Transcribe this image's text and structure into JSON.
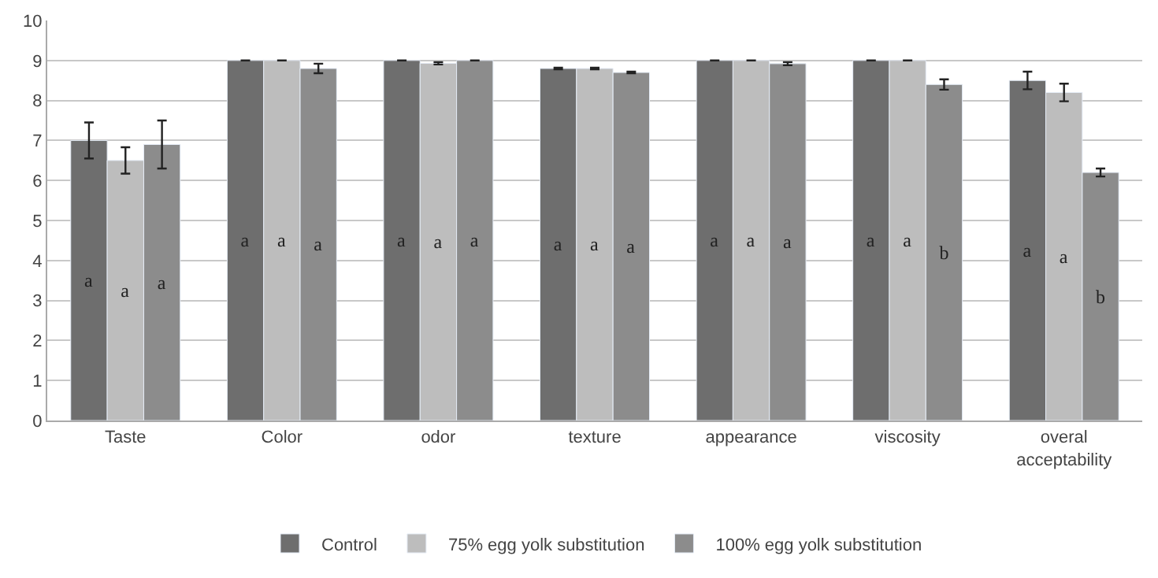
{
  "chart_data": {
    "type": "bar",
    "categories": [
      "Taste",
      "Color",
      "odor",
      "texture",
      "appearance",
      "viscosity",
      "overal acceptability"
    ],
    "series": [
      {
        "name": "Control",
        "color": "#6e6e6e",
        "values": [
          7.0,
          9.0,
          9.0,
          8.8,
          9.0,
          9.0,
          8.5
        ],
        "errors": [
          0.45,
          null,
          null,
          0.02,
          null,
          null,
          0.22
        ],
        "value_labels": [
          "a",
          "a",
          "a",
          "a",
          "a",
          "a",
          "a"
        ]
      },
      {
        "name": "75% egg yolk substitution",
        "color": "#bdbdbd",
        "values": [
          6.5,
          9.0,
          8.93,
          8.8,
          9.0,
          9.0,
          8.2
        ],
        "errors": [
          0.33,
          null,
          0.03,
          0.02,
          null,
          null,
          0.22
        ],
        "value_labels": [
          "a",
          "a",
          "a",
          "a",
          "a",
          "a",
          "a"
        ]
      },
      {
        "name": "100% egg yolk substitution",
        "color": "#8c8c8c",
        "values": [
          6.9,
          8.8,
          9.0,
          8.7,
          8.92,
          8.4,
          6.2
        ],
        "errors": [
          0.6,
          0.12,
          null,
          0.02,
          0.04,
          0.13,
          0.1
        ],
        "value_labels": [
          "a",
          "a",
          "a",
          "a",
          "a",
          "b",
          "b"
        ]
      }
    ],
    "ylim": [
      0,
      10
    ],
    "yticks": [
      0,
      1,
      2,
      3,
      4,
      5,
      6,
      7,
      8,
      9,
      10
    ],
    "grid": "y",
    "legend": "bottom"
  }
}
